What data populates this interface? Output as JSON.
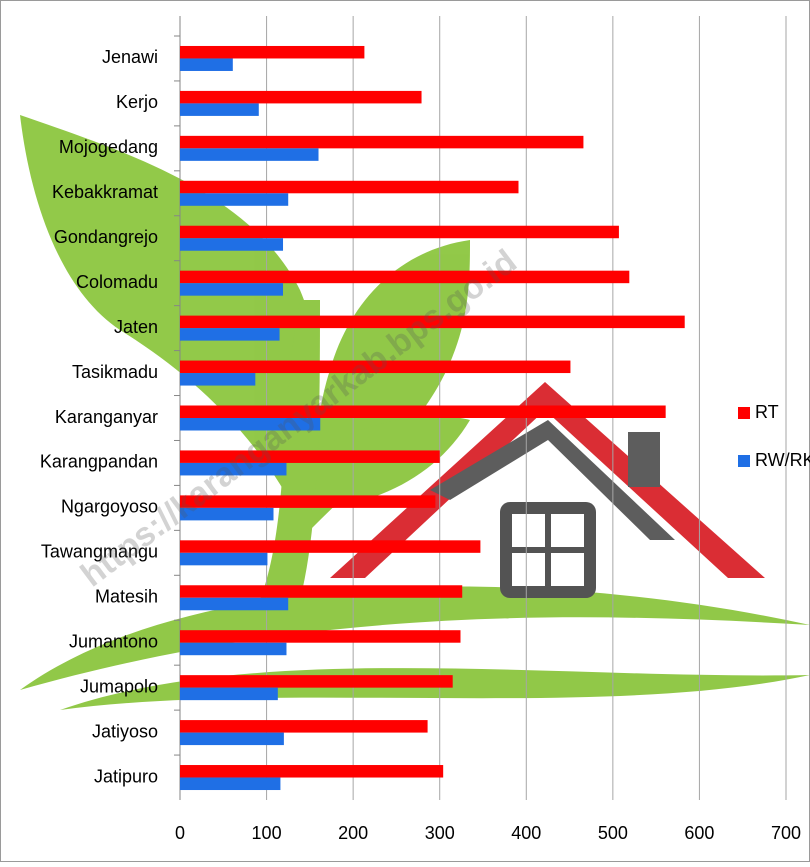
{
  "chart_data": {
    "type": "bar",
    "orientation": "horizontal",
    "watermark": "https://karanganyarkab.bps.go.id",
    "categories": [
      "Jenawi",
      "Kerjo",
      "Mojogedang",
      "Kebakkramat",
      "Gondangrejo",
      "Colomadu",
      "Jaten",
      "Tasikmadu",
      "Karanganyar",
      "Karangpandan",
      "Ngargoyoso",
      "Tawangmangu",
      "Matesih",
      "Jumantono",
      "Jumapolo",
      "Jatiyoso",
      "Jatipuro"
    ],
    "series": [
      {
        "name": "RT",
        "color": "#ff0000",
        "values": [
          213,
          279,
          466,
          391,
          507,
          519,
          583,
          451,
          561,
          300,
          295,
          347,
          326,
          324,
          315,
          286,
          304
        ]
      },
      {
        "name": "RW/RK",
        "color": "#1f6fe5",
        "values": [
          61,
          91,
          160,
          125,
          119,
          119,
          115,
          87,
          162,
          123,
          108,
          101,
          125,
          123,
          113,
          120,
          116
        ]
      }
    ],
    "xlim": [
      0,
      700
    ],
    "xticks": [
      0,
      100,
      200,
      300,
      400,
      500,
      600,
      700
    ],
    "grid": true,
    "legend": "right"
  }
}
